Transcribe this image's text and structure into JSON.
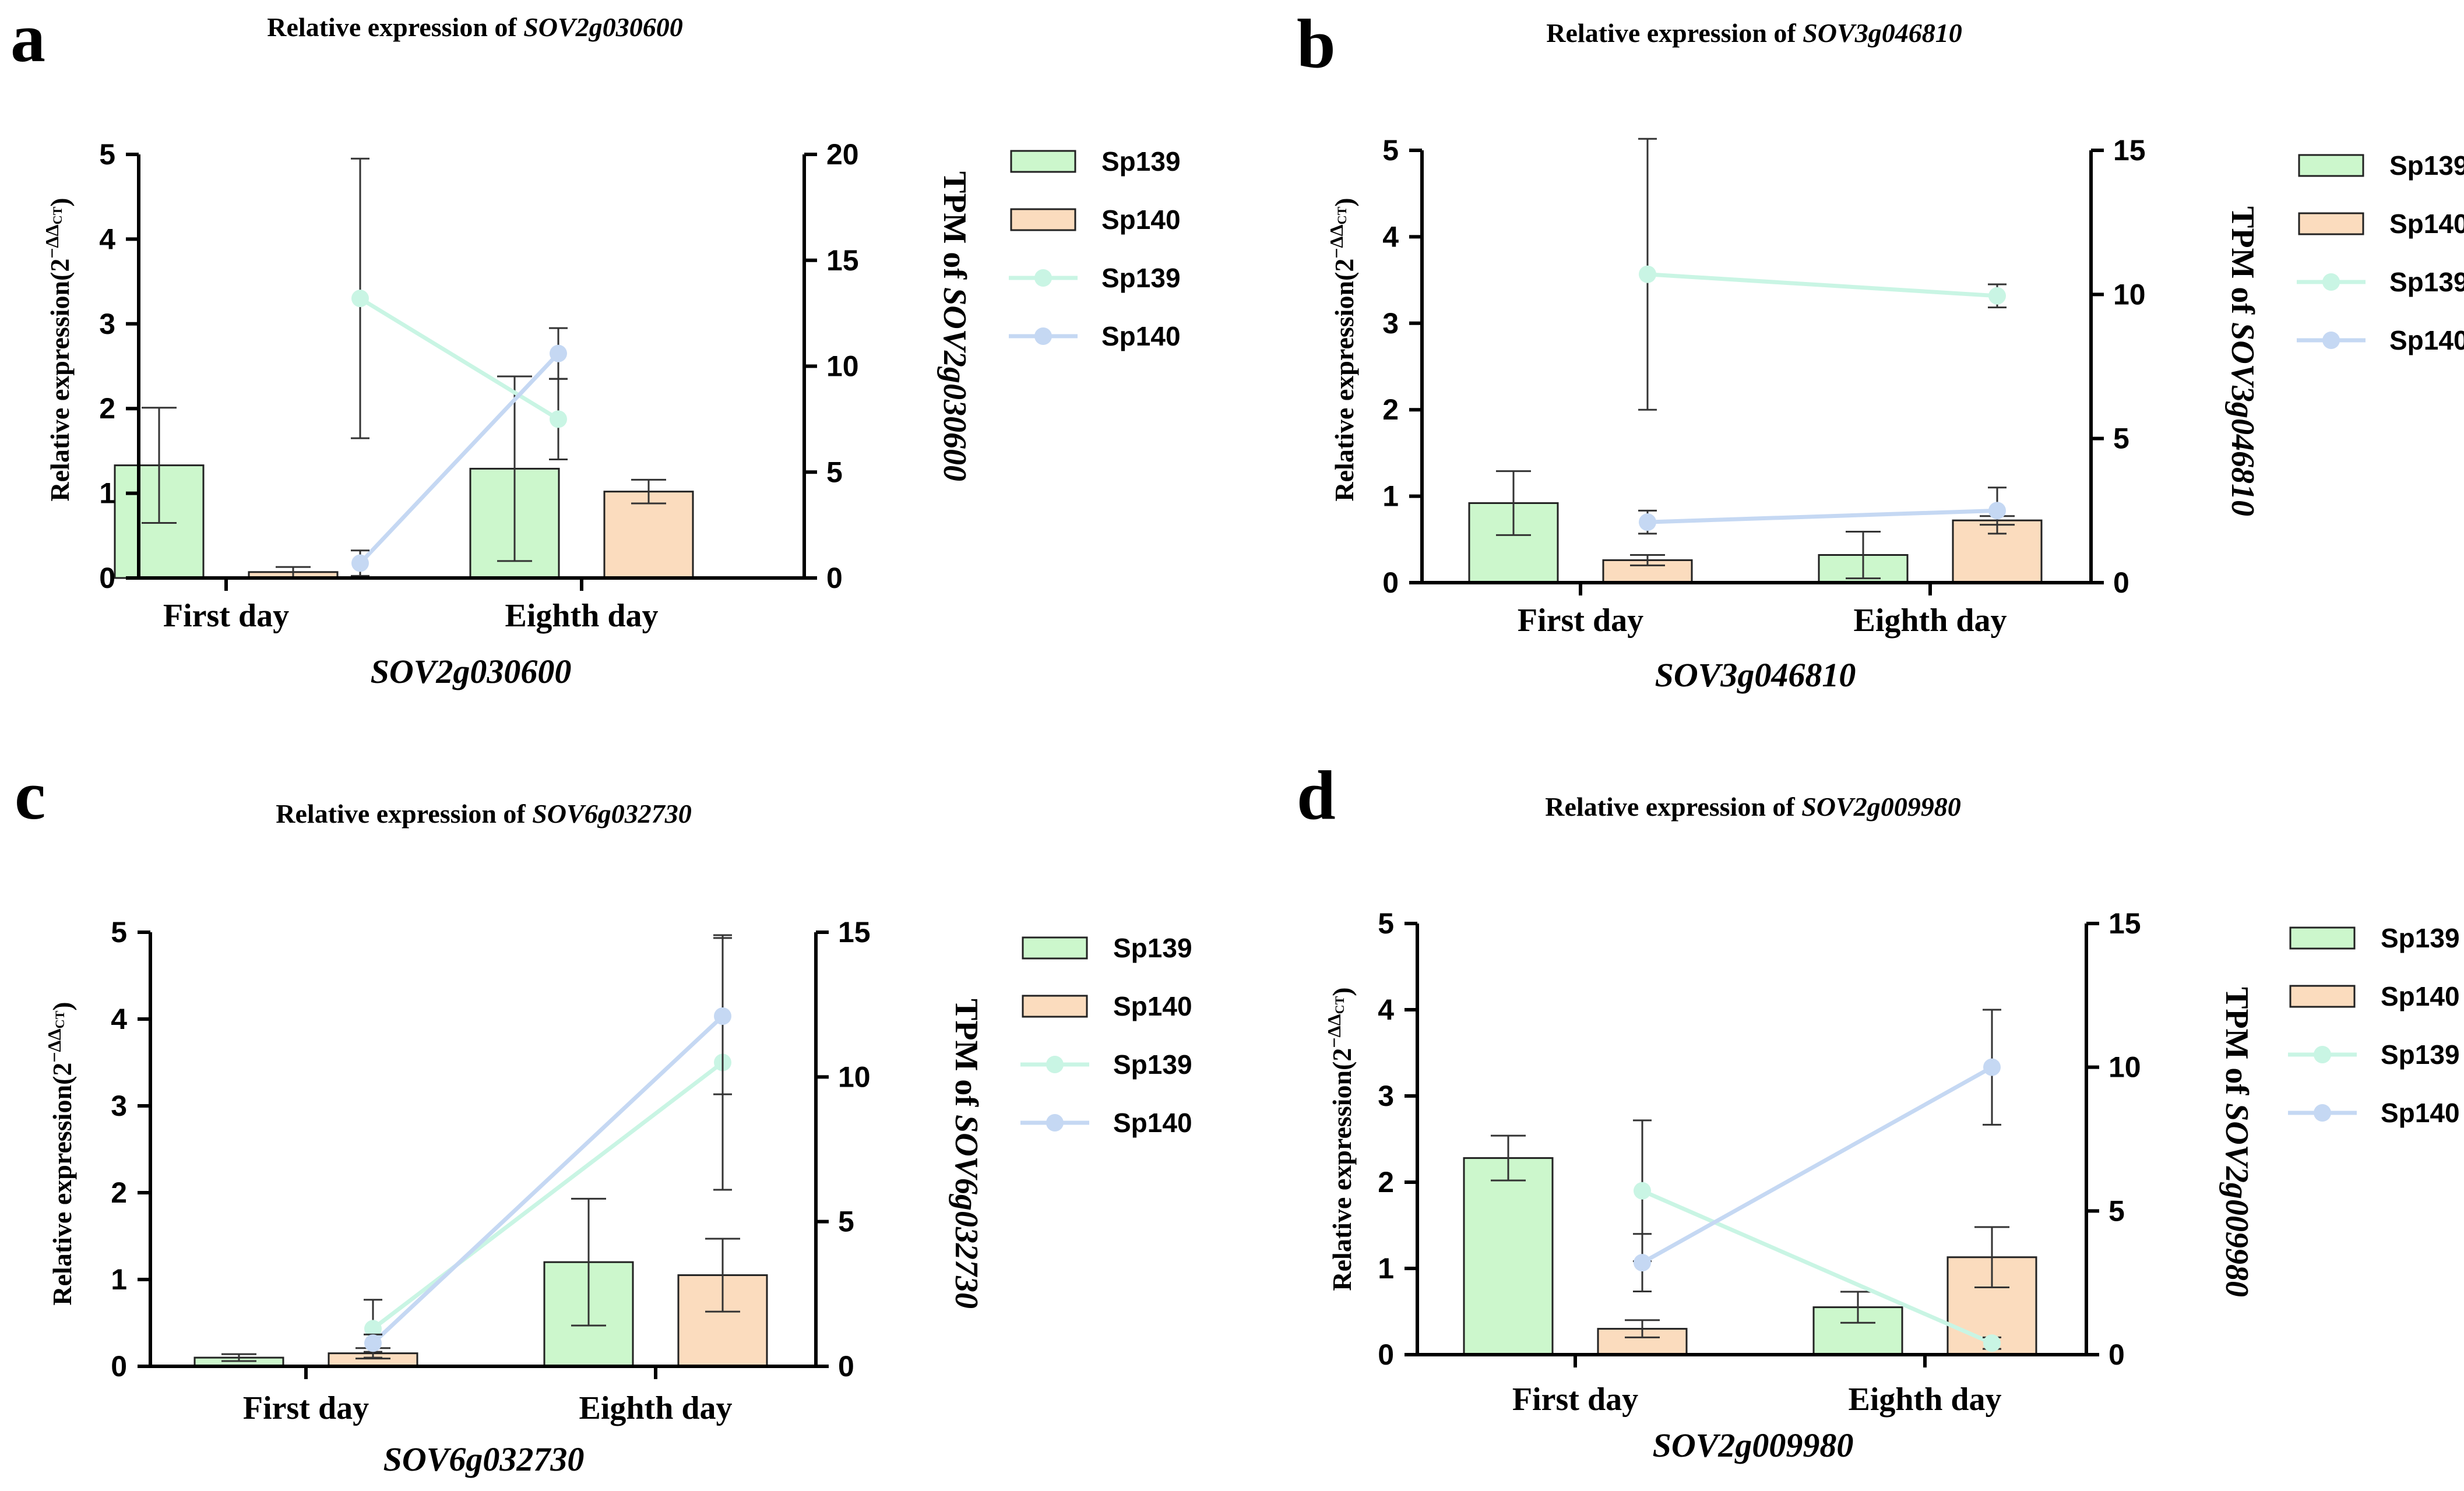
{
  "colors": {
    "bar_sp139": "#ccf7cc",
    "bar_sp140": "#fbdcbe",
    "line_sp139": "#c9f5e4",
    "line_sp140": "#c5d8f3",
    "axis": "#000000",
    "error_bar": "#333333"
  },
  "chart_data": [
    {
      "panel": "a",
      "type": "bar",
      "title_prefix": "Relative expression of ",
      "gene": "SOV2g030600",
      "xlabel": "SOV2g030600",
      "ylabel_base": "Relative expression(2",
      "ylabel_sup": "−ΔΔ",
      "ylabel_sub": "CT",
      "ylabel_end": ")",
      "y2label_prefix": "TPM of ",
      "categories": [
        "First day",
        "Eighth day"
      ],
      "ylim": [
        0,
        5
      ],
      "yticks": [
        0,
        1,
        2,
        3,
        4,
        5
      ],
      "y2lim": [
        0,
        20
      ],
      "y2ticks": [
        0,
        5,
        10,
        15,
        20
      ],
      "bars": [
        {
          "name": "Sp139",
          "values": [
            1.33,
            1.29
          ],
          "errors": [
            0.68,
            1.09
          ]
        },
        {
          "name": "Sp140",
          "values": [
            0.07,
            1.02
          ],
          "errors": [
            0.06,
            0.14
          ]
        }
      ],
      "lines": [
        {
          "name": "Sp139",
          "values": [
            13.2,
            7.5
          ],
          "errors": [
            6.6,
            1.9
          ]
        },
        {
          "name": "Sp140",
          "values": [
            0.7,
            10.6
          ],
          "errors": [
            0.6,
            1.2
          ]
        }
      ],
      "legend": [
        "Sp139",
        "Sp140",
        "Sp139",
        "Sp140"
      ]
    },
    {
      "panel": "b",
      "type": "bar",
      "title_prefix": "Relative expression of ",
      "gene": "SOV3g046810",
      "xlabel": "SOV3g046810",
      "ylabel_base": "Relative expression(2",
      "ylabel_sup": "−ΔΔ",
      "ylabel_sub": "CT",
      "ylabel_end": ")",
      "y2label_prefix": "TPM of ",
      "categories": [
        "First day",
        "Eighth day"
      ],
      "ylim": [
        0,
        5
      ],
      "yticks": [
        0,
        1,
        2,
        3,
        4,
        5
      ],
      "y2lim": [
        0,
        15
      ],
      "y2ticks": [
        0,
        5,
        10,
        15
      ],
      "bars": [
        {
          "name": "Sp139",
          "values": [
            0.92,
            0.32
          ],
          "errors": [
            0.37,
            0.27
          ]
        },
        {
          "name": "Sp140",
          "values": [
            0.26,
            0.72
          ],
          "errors": [
            0.06,
            0.05
          ]
        }
      ],
      "lines": [
        {
          "name": "Sp139",
          "values": [
            10.7,
            9.95
          ],
          "errors": [
            4.7,
            0.4
          ]
        },
        {
          "name": "Sp140",
          "values": [
            2.1,
            2.5
          ],
          "errors": [
            0.4,
            0.8
          ]
        }
      ],
      "legend": [
        "Sp139",
        "Sp140",
        "Sp139",
        "Sp140"
      ]
    },
    {
      "panel": "c",
      "type": "bar",
      "title_prefix": "Relative expression of ",
      "gene": "SOV6g032730",
      "xlabel": "SOV6g032730",
      "ylabel_base": "Relative expression(2",
      "ylabel_sup": "−ΔΔ",
      "ylabel_sub": "CT",
      "ylabel_end": ")",
      "y2label_prefix": "TPM of ",
      "categories": [
        "First day",
        "Eighth day"
      ],
      "ylim": [
        0,
        5
      ],
      "yticks": [
        0,
        1,
        2,
        3,
        4,
        5
      ],
      "y2lim": [
        0,
        15
      ],
      "y2ticks": [
        0,
        5,
        10,
        15
      ],
      "bars": [
        {
          "name": "Sp139",
          "values": [
            0.1,
            1.2
          ],
          "errors": [
            0.04,
            0.73
          ]
        },
        {
          "name": "Sp140",
          "values": [
            0.15,
            1.05
          ],
          "errors": [
            0.06,
            0.42
          ]
        }
      ],
      "lines": [
        {
          "name": "Sp139",
          "values": [
            1.3,
            10.5
          ],
          "errors": [
            1.0,
            4.4
          ]
        },
        {
          "name": "Sp140",
          "values": [
            0.8,
            12.1
          ],
          "errors": [
            0.3,
            2.7
          ]
        }
      ],
      "legend": [
        "Sp139",
        "Sp140",
        "Sp139",
        "Sp140"
      ]
    },
    {
      "panel": "d",
      "type": "bar",
      "title_prefix": "Relative expression of ",
      "gene": "SOV2g009980",
      "xlabel": "SOV2g009980",
      "ylabel_base": "Relative expression(2",
      "ylabel_sup": "−ΔΔ",
      "ylabel_sub": "CT",
      "ylabel_end": ")",
      "y2label_prefix": "TPM of ",
      "categories": [
        "First day",
        "Eighth day"
      ],
      "ylim": [
        0,
        5
      ],
      "yticks": [
        0,
        1,
        2,
        3,
        4,
        5
      ],
      "y2lim": [
        0,
        15
      ],
      "y2ticks": [
        0,
        5,
        10,
        15
      ],
      "bars": [
        {
          "name": "Sp139",
          "values": [
            2.28,
            0.55
          ],
          "errors": [
            0.26,
            0.18
          ]
        },
        {
          "name": "Sp140",
          "values": [
            0.3,
            1.13
          ],
          "errors": [
            0.1,
            0.35
          ]
        }
      ],
      "lines": [
        {
          "name": "Sp139",
          "values": [
            5.7,
            0.4
          ],
          "errors": [
            2.45,
            0.2
          ]
        },
        {
          "name": "Sp140",
          "values": [
            3.2,
            10.0
          ],
          "errors": [
            1.0,
            2.0
          ]
        }
      ],
      "legend": [
        "Sp139",
        "Sp140",
        "Sp139",
        "Sp140"
      ]
    }
  ]
}
